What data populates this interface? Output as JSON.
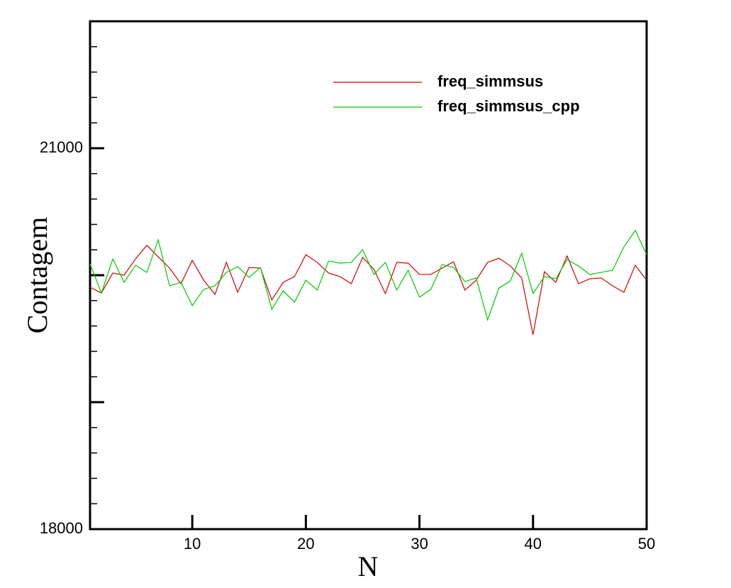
{
  "chart_data": {
    "type": "line",
    "x_label": "N",
    "y_label": "Contagem",
    "x": [
      1,
      2,
      3,
      4,
      5,
      6,
      7,
      8,
      9,
      10,
      11,
      12,
      13,
      14,
      15,
      16,
      17,
      18,
      19,
      20,
      21,
      22,
      23,
      24,
      25,
      26,
      27,
      28,
      29,
      30,
      31,
      32,
      33,
      34,
      35,
      36,
      37,
      38,
      39,
      40,
      41,
      42,
      43,
      44,
      45,
      46,
      47,
      48,
      49,
      50
    ],
    "series": [
      {
        "name": "freq_simmsus",
        "color": "#d40000",
        "values": [
          19905,
          19860,
          20017,
          20000,
          20128,
          20235,
          20145,
          20056,
          19933,
          20117,
          19961,
          19849,
          20101,
          19866,
          20061,
          20056,
          19804,
          19944,
          19989,
          20162,
          20101,
          20017,
          19989,
          19933,
          20140,
          20045,
          19855,
          20101,
          20095,
          20006,
          20006,
          20056,
          20106,
          19883,
          19961,
          20101,
          20134,
          20073,
          19978,
          19531,
          20028,
          19944,
          20151,
          19933,
          19972,
          19978,
          19916,
          19866,
          20078,
          19961
        ]
      },
      {
        "name": "freq_simmsus_cpp",
        "color": "#00cc00",
        "values": [
          20089,
          19860,
          20128,
          19944,
          20078,
          20022,
          20279,
          19916,
          19944,
          19760,
          19888,
          19916,
          20022,
          20067,
          19983,
          20061,
          19732,
          19877,
          19788,
          19961,
          19883,
          20112,
          20095,
          20101,
          20201,
          20006,
          20101,
          19883,
          20039,
          19827,
          19888,
          20084,
          20061,
          19950,
          19978,
          19648,
          19899,
          19955,
          20173,
          19855,
          19989,
          19972,
          20123,
          20073,
          20006,
          20022,
          20039,
          20223,
          20352,
          20162
        ]
      }
    ],
    "xlim": [
      1,
      50
    ],
    "xticks": [
      10,
      20,
      30,
      40,
      50
    ],
    "ylim": [
      18000,
      22000
    ],
    "yticks": [
      18000,
      21000
    ],
    "legend": "upper right"
  }
}
